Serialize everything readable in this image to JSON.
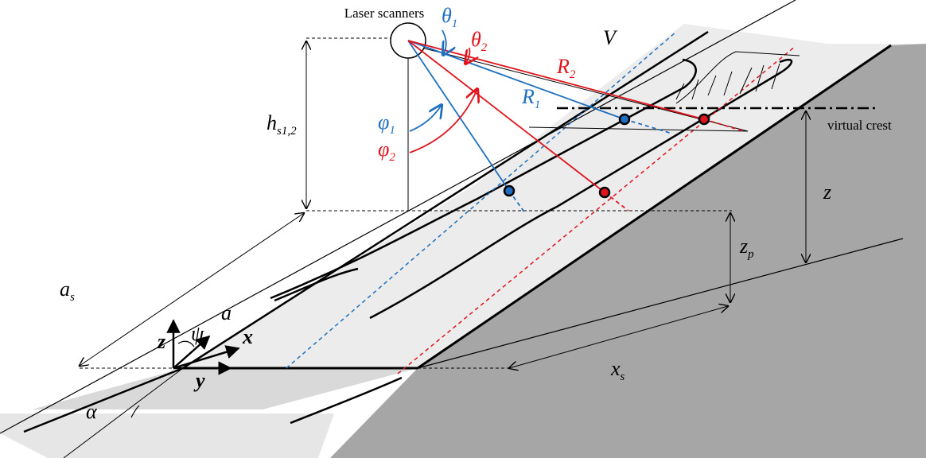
{
  "labels": {
    "scanners": "Laser scanners",
    "theta1": {
      "base": "θ",
      "sub": "1"
    },
    "theta2": {
      "base": "θ",
      "sub": "2"
    },
    "r1": {
      "base": "R",
      "sub": "1"
    },
    "r2": {
      "base": "R",
      "sub": "2"
    },
    "v": "V",
    "phi1": {
      "base": "φ",
      "sub": "1"
    },
    "phi2": {
      "base": "φ",
      "sub": "2"
    },
    "h": {
      "base": "h",
      "sub": "s1,2"
    },
    "crest": "virtual crest",
    "z_big": "z",
    "zp": {
      "base": "z",
      "sub": "p"
    },
    "as": {
      "base": "a",
      "sub": "s"
    },
    "a": "a",
    "x": "x",
    "z": "z",
    "psi": "ψ",
    "y": "y",
    "alpha": "α",
    "xs": {
      "base": "x",
      "sub": "s"
    }
  }
}
